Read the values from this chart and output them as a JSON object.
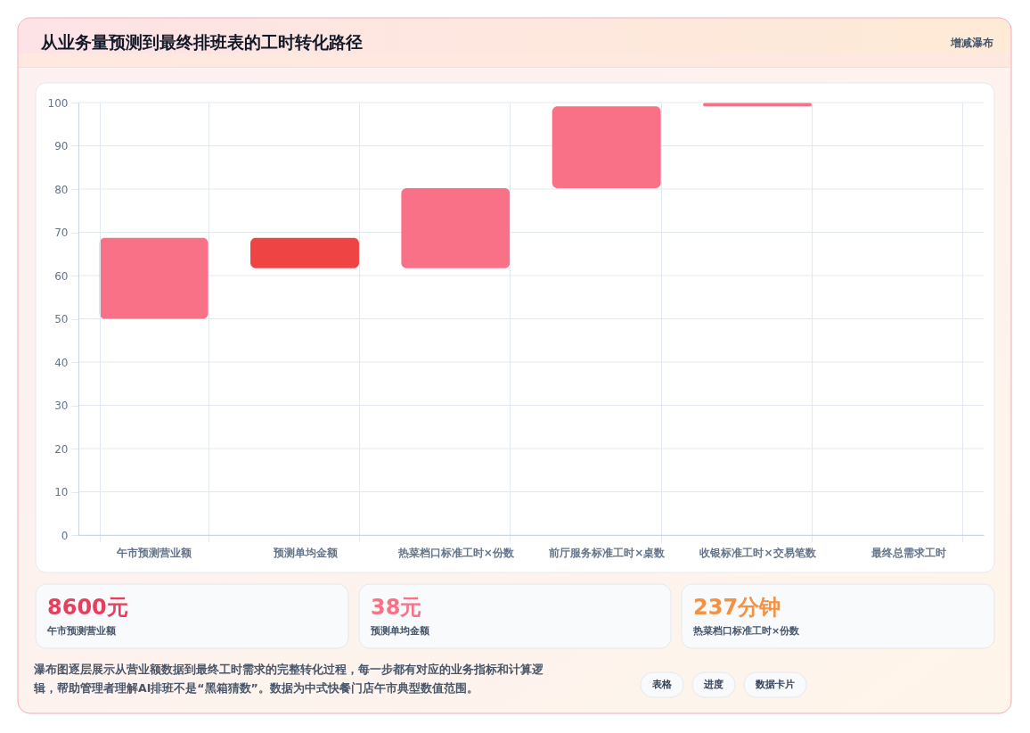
{
  "chart_data": {
    "type": "bar",
    "title": "从业务量预测到最终排班表的工时转化路径",
    "subtitle": "增减瀑布",
    "categories": [
      "午市预测营业额",
      "预测单均金额",
      "热菜档口标准工时×份数",
      "前厅服务标准工时×桌数",
      "收银标准工时×交易笔数",
      "最终总需求工时"
    ],
    "values": [
      18.7,
      -7,
      18.5,
      18.9,
      0.8,
      null
    ],
    "base": [
      50,
      68.7,
      61.7,
      80.2,
      99.1,
      null
    ],
    "colors": [
      "#f87186",
      "#ef4444",
      "#f87186",
      "#f87186",
      "#f87186",
      null
    ],
    "ylim": [
      0,
      100
    ],
    "yticks": [
      0,
      10,
      20,
      30,
      40,
      50,
      60,
      70,
      80,
      90,
      100
    ],
    "grid": true,
    "annotations": [
      "8600元",
      "午市预测营业额",
      "38元",
      "预测单均金额",
      "237分钟",
      "热菜档口标准工时×份数",
      "瀑布图逐层展示从营业额数据到最终工时需求的完整转化过程，每一步都有对应的业务指标和计算逻辑，帮助管理者理解AI排班不是“黑箱猜数”。数据为中式快餐门店午市典型数值范围。",
      "表格",
      "进度",
      "数据卡片"
    ]
  }
}
